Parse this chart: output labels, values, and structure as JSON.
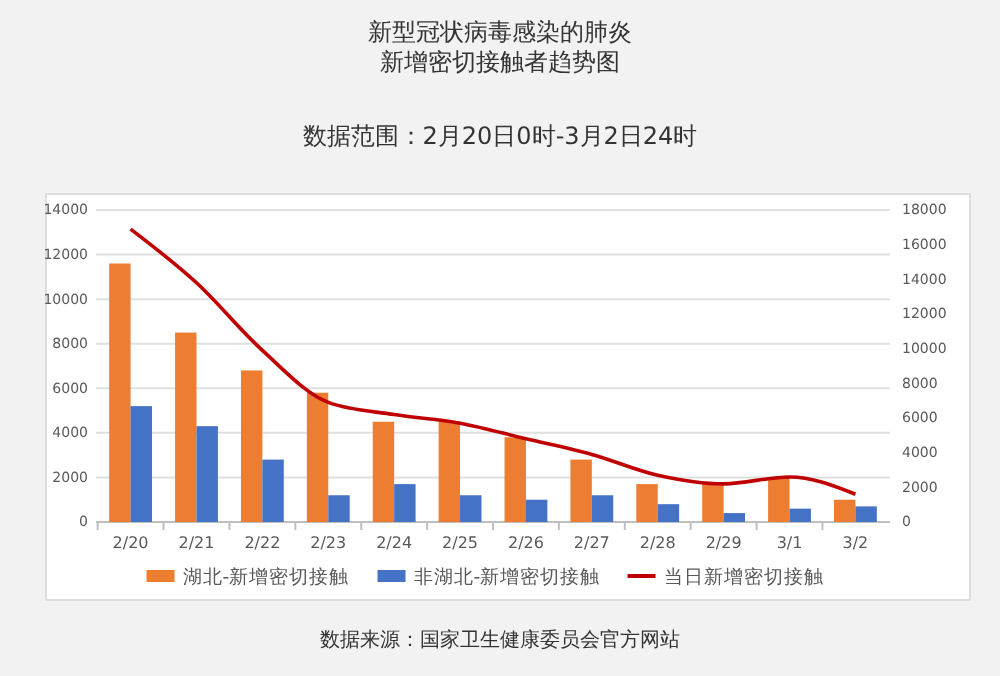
{
  "chart_data": {
    "type": "bar",
    "title": "新型冠状病毒感染的肺炎新增密切接触者趋势图",
    "subtitle": "数据范围：2月20日0时-3月2日24时",
    "categories": [
      "2/20",
      "2/21",
      "2/22",
      "2/23",
      "2/24",
      "2/25",
      "2/26",
      "2/27",
      "2/28",
      "2/29",
      "3/1",
      "3/2"
    ],
    "series": [
      {
        "name": "湖北-新增密切接触",
        "color": "#ed7d31",
        "values": [
          11600,
          8500,
          6800,
          5800,
          4500,
          4500,
          3800,
          2800,
          1700,
          1700,
          2000,
          1000
        ]
      },
      {
        "name": "非湖北-新增密切接触",
        "color": "#4472c4",
        "values": [
          5200,
          4300,
          2800,
          1200,
          1700,
          1200,
          1000,
          1200,
          800,
          400,
          600,
          700
        ]
      },
      {
        "name": "当日新增密切接触",
        "color": "#c00000",
        "type": "line",
        "axis": "y2",
        "values": [
          16900,
          13800,
          9900,
          6900,
          6200,
          5700,
          4800,
          3900,
          2700,
          2200,
          2600,
          1600
        ]
      }
    ],
    "ylim": [
      0,
      14000
    ],
    "yticks": [
      0,
      2000,
      4000,
      6000,
      8000,
      10000,
      12000,
      14000
    ],
    "y2lim": [
      0,
      18000
    ],
    "y2ticks": [
      0,
      2000,
      4000,
      6000,
      8000,
      10000,
      12000,
      14000,
      16000,
      18000
    ],
    "grid": "y",
    "legend": "bottom",
    "marker": "none",
    "line_style": "solid",
    "annotations": [
      "数据来源：国家卫生健康委员会官方网站"
    ]
  }
}
